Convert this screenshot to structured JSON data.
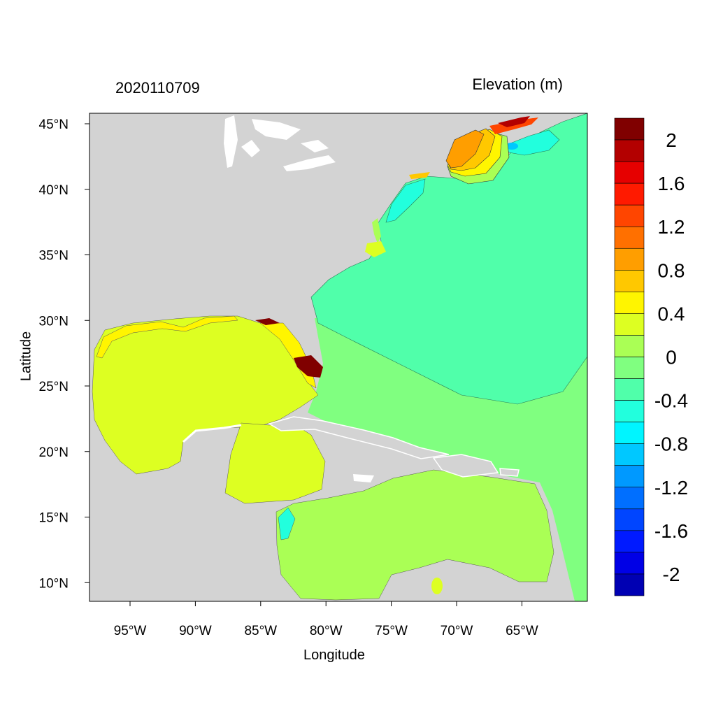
{
  "header": {
    "timestamp": "2020110709",
    "variable_title": "Elevation (m)"
  },
  "axes": {
    "xlabel": "Longitude",
    "ylabel": "Latitude",
    "lon_ticks": [
      {
        "value": -95,
        "label": "95°W"
      },
      {
        "value": -90,
        "label": "90°W"
      },
      {
        "value": -85,
        "label": "85°W"
      },
      {
        "value": -80,
        "label": "80°W"
      },
      {
        "value": -75,
        "label": "75°W"
      },
      {
        "value": -70,
        "label": "70°W"
      },
      {
        "value": -65,
        "label": "65°W"
      }
    ],
    "lat_ticks": [
      {
        "value": 45,
        "label": "45°N"
      },
      {
        "value": 40,
        "label": "40°N"
      },
      {
        "value": 35,
        "label": "35°N"
      },
      {
        "value": 30,
        "label": "30°N"
      },
      {
        "value": 25,
        "label": "25°N"
      },
      {
        "value": 20,
        "label": "20°N"
      },
      {
        "value": 15,
        "label": "15°N"
      },
      {
        "value": 10,
        "label": "10°N"
      }
    ],
    "lon_range": [
      -98.2,
      -60.1
    ],
    "lat_range": [
      8.6,
      45.8
    ]
  },
  "map": {
    "land_color": "#d3d3d3",
    "lake_color": "#ffffff",
    "region": "Gulf of Mexico, Caribbean and western North Atlantic"
  },
  "colorbar": {
    "colors_top_to_bottom": [
      "#800000",
      "#b30000",
      "#e60000",
      "#ff1a00",
      "#ff4500",
      "#ff7000",
      "#ff9e00",
      "#ffc800",
      "#fff500",
      "#ddff22",
      "#aaff55",
      "#80ff80",
      "#50ffaa",
      "#22ffdd",
      "#00f5ff",
      "#00c8ff",
      "#0099ff",
      "#006fff",
      "#0045ff",
      "#001aff",
      "#0000e6",
      "#0000b3"
    ],
    "labels_top_to_bottom": [
      "2",
      "1.6",
      "1.2",
      "0.8",
      "0.4",
      "0",
      "-0.4",
      "-0.8",
      "-1.2",
      "-1.6",
      "-2"
    ]
  }
}
